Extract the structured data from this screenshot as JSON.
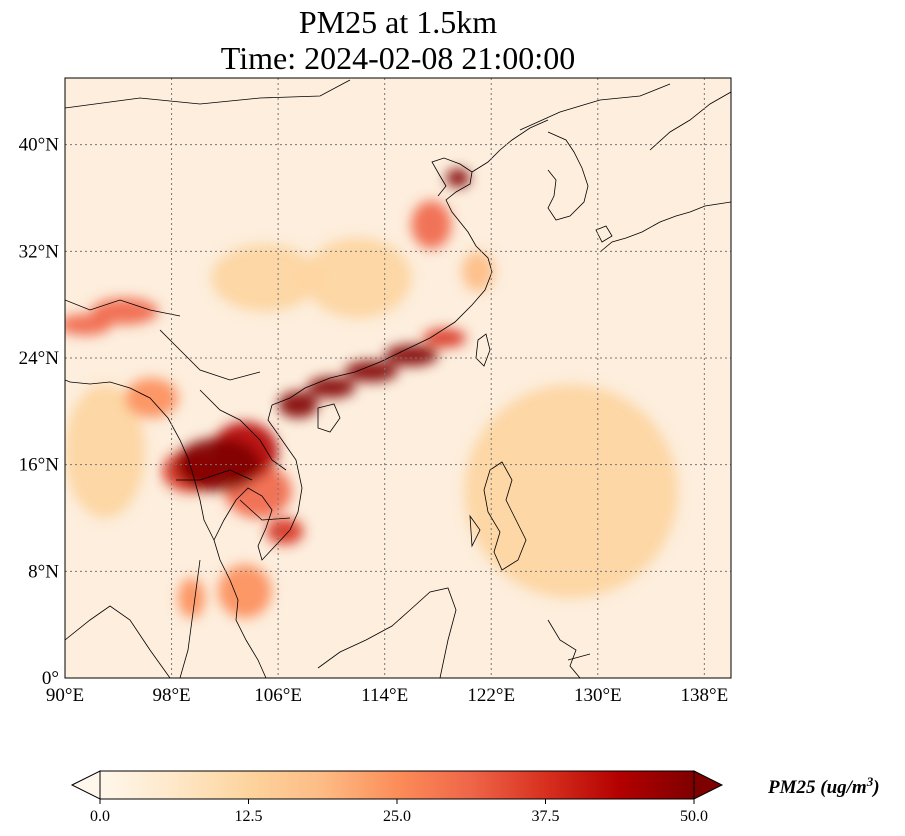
{
  "title": {
    "line1": "PM25 at 1.5km",
    "line2": "Time: 2024-02-08 21:00:00"
  },
  "map": {
    "lon_range": [
      90,
      140
    ],
    "lat_range": [
      0,
      45
    ],
    "lon_ticks": [
      {
        "value": 90,
        "label": "90°E"
      },
      {
        "value": 98,
        "label": "98°E"
      },
      {
        "value": 106,
        "label": "106°E"
      },
      {
        "value": 114,
        "label": "114°E"
      },
      {
        "value": 122,
        "label": "122°E"
      },
      {
        "value": 130,
        "label": "130°E"
      },
      {
        "value": 138,
        "label": "138°E"
      }
    ],
    "lat_ticks": [
      {
        "value": 0,
        "label": "0°"
      },
      {
        "value": 8,
        "label": "8°N"
      },
      {
        "value": 16,
        "label": "16°N"
      },
      {
        "value": 24,
        "label": "24°N"
      },
      {
        "value": 32,
        "label": "32°N"
      },
      {
        "value": 40,
        "label": "40°N"
      }
    ],
    "gridlines": true,
    "colormap": "OrRd",
    "colors": [
      "#fff7ec",
      "#fee8c8",
      "#fdd49e",
      "#fdbb84",
      "#fc8d59",
      "#ef6548",
      "#d7301f",
      "#b30000",
      "#7f0000"
    ],
    "hotspots": [
      {
        "lon": 101.5,
        "lat": 16.0,
        "value": 50,
        "rx": 3.2,
        "ry": 2.0
      },
      {
        "lon": 103.5,
        "lat": 17.0,
        "value": 42,
        "rx": 2.5,
        "ry": 2.2
      },
      {
        "lon": 99.5,
        "lat": 15.5,
        "value": 35,
        "rx": 2.2,
        "ry": 1.6
      },
      {
        "lon": 104.5,
        "lat": 14.0,
        "value": 30,
        "rx": 2.5,
        "ry": 2.0
      },
      {
        "lon": 106.5,
        "lat": 11.0,
        "value": 38,
        "rx": 1.4,
        "ry": 1.0
      },
      {
        "lon": 107.5,
        "lat": 20.5,
        "value": 48,
        "rx": 1.5,
        "ry": 1.0
      },
      {
        "lon": 110.0,
        "lat": 21.8,
        "value": 47,
        "rx": 1.8,
        "ry": 0.8
      },
      {
        "lon": 113.0,
        "lat": 23.0,
        "value": 50,
        "rx": 2.0,
        "ry": 0.8
      },
      {
        "lon": 116.0,
        "lat": 24.2,
        "value": 48,
        "rx": 2.0,
        "ry": 0.8
      },
      {
        "lon": 118.5,
        "lat": 25.5,
        "value": 40,
        "rx": 1.6,
        "ry": 0.7
      },
      {
        "lon": 119.5,
        "lat": 37.5,
        "value": 50,
        "rx": 0.9,
        "ry": 0.7
      },
      {
        "lon": 117.5,
        "lat": 34.0,
        "value": 30,
        "rx": 1.5,
        "ry": 1.8
      },
      {
        "lon": 94.5,
        "lat": 27.5,
        "value": 32,
        "rx": 2.5,
        "ry": 1.0
      },
      {
        "lon": 91.5,
        "lat": 26.5,
        "value": 30,
        "rx": 2.0,
        "ry": 0.8
      },
      {
        "lon": 96.5,
        "lat": 21.0,
        "value": 22,
        "rx": 2.0,
        "ry": 1.5
      },
      {
        "lon": 103.5,
        "lat": 6.5,
        "value": 22,
        "rx": 2.0,
        "ry": 2.0
      },
      {
        "lon": 99.5,
        "lat": 6.0,
        "value": 22,
        "rx": 1.0,
        "ry": 1.5
      },
      {
        "lon": 93.0,
        "lat": 17.0,
        "value": 12,
        "rx": 3.0,
        "ry": 5.0
      },
      {
        "lon": 105.0,
        "lat": 30.0,
        "value": 12,
        "rx": 4.0,
        "ry": 2.5
      },
      {
        "lon": 112.0,
        "lat": 30.0,
        "value": 12,
        "rx": 4.0,
        "ry": 3.0
      },
      {
        "lon": 128.0,
        "lat": 14.0,
        "value": 10,
        "rx": 8.0,
        "ry": 8.0
      },
      {
        "lon": 121.0,
        "lat": 30.5,
        "value": 18,
        "rx": 1.2,
        "ry": 1.5
      }
    ]
  },
  "colorbar": {
    "min": 0,
    "max": 50,
    "ticks": [
      "0.0",
      "12.5",
      "25.0",
      "37.5",
      "50.0"
    ],
    "label": "PM25 (ug/m",
    "label_sup": "3",
    "label_end": ")"
  }
}
